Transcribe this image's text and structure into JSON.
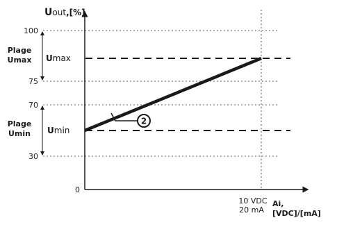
{
  "y_axis": {
    "label_main": "U",
    "label_rest": "out",
    "label_unit": ",[%]",
    "ticks": [
      "100",
      "75",
      "70",
      "30",
      "0"
    ]
  },
  "x_axis": {
    "tick_line1": "10 VDC",
    "tick_line2": "20 mA",
    "label_line1": "Ai,",
    "label_line2": "[VDC]/[mA]"
  },
  "ranges": {
    "umax_label_line1": "Plage",
    "umax_label_line2": "Umax",
    "umin_label_line1": "Plage",
    "umin_label_line2": "Umin"
  },
  "markers": {
    "umax_prefix": "U",
    "umax_suffix": "max",
    "umin_prefix": "U",
    "umin_suffix": "min"
  },
  "callout": {
    "number": "2"
  },
  "chart_data": {
    "type": "line",
    "xlabel": "Ai, [VDC]/[mA]",
    "ylabel": "Uout,[%]",
    "x_tick_labels": [
      "10 VDC / 20 mA"
    ],
    "y_ticks": [
      100,
      75,
      70,
      30,
      0
    ],
    "series": [
      {
        "x": [
          0,
          10
        ],
        "y": [
          50,
          90
        ]
      }
    ],
    "reference_lines": [
      {
        "label": "Umax",
        "y": 90
      },
      {
        "label": "Umin",
        "y": 50
      }
    ]
  }
}
